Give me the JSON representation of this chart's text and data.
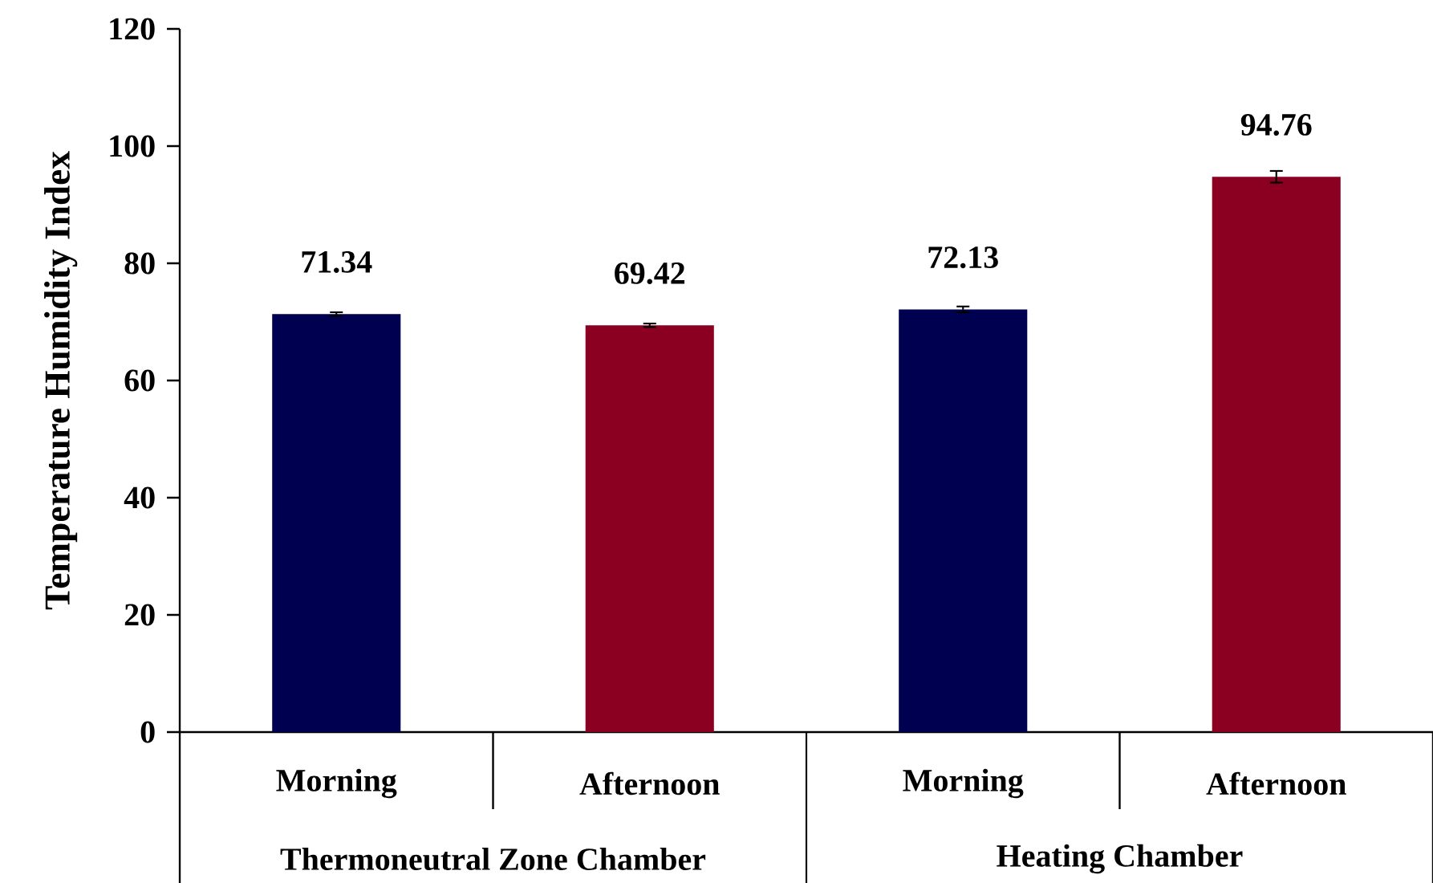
{
  "chart_data": {
    "type": "bar",
    "ylabel": "Temperature Humidity Index",
    "categories": [
      "Morning",
      "Afternoon",
      "Morning",
      "Afternoon"
    ],
    "values": [
      71.34,
      69.42,
      72.13,
      94.76
    ],
    "errors": [
      0.3,
      0.3,
      0.5,
      1.0
    ],
    "colors": [
      "#000050",
      "#8b0020",
      "#000050",
      "#8b0020"
    ],
    "data_labels": true,
    "ylim": [
      0,
      120
    ],
    "yticks": [
      0,
      20,
      40,
      60,
      80,
      100,
      120
    ],
    "annotations": [
      "Thermoneutral Zone Chamber",
      "Heating Chamber"
    ]
  }
}
